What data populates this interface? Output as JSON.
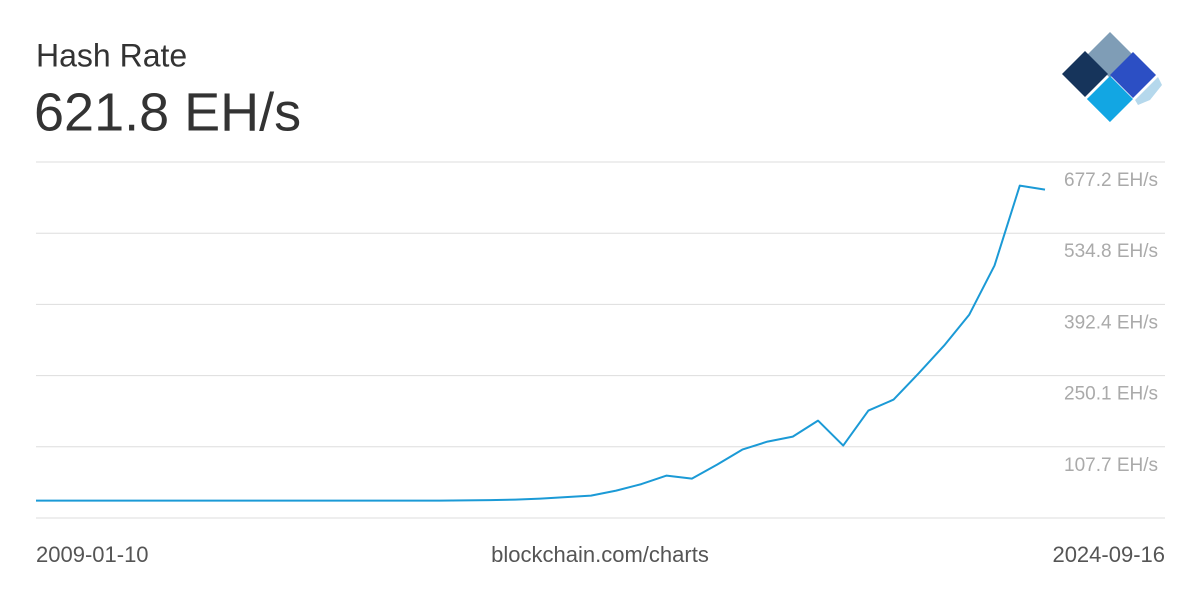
{
  "header": {
    "title": "Hash Rate",
    "value": "621.8 EH/s"
  },
  "chart_data": {
    "type": "line",
    "categories": [
      "2009-01-10",
      null,
      null,
      null,
      null,
      null,
      null,
      null,
      null,
      null,
      null,
      null,
      null,
      null,
      null,
      null,
      null,
      null,
      null,
      null,
      null,
      null,
      null,
      null,
      null,
      null,
      null,
      null,
      null,
      null,
      null,
      null,
      null,
      null,
      null,
      null,
      null,
      null,
      null,
      null,
      "2024-09-16"
    ],
    "series": [
      {
        "name": "Hash Rate",
        "color": "#1b9ad6",
        "values": [
          0,
          0,
          0,
          0,
          0,
          0,
          0,
          0,
          0,
          0,
          0,
          0,
          0,
          0,
          0,
          0,
          0,
          0.5,
          1,
          2,
          4,
          7,
          10,
          20,
          33,
          50,
          44,
          72,
          102,
          118,
          128,
          160,
          110,
          180,
          202,
          255,
          310,
          372,
          470,
          630,
          622
        ]
      }
    ],
    "ylim": [
      -34.7,
      677.2
    ],
    "yticks": [
      {
        "value": 107.7,
        "label": "107.7 EH/s"
      },
      {
        "value": 250.1,
        "label": "250.1 EH/s"
      },
      {
        "value": 392.4,
        "label": "392.4 EH/s"
      },
      {
        "value": 534.8,
        "label": "534.8 EH/s"
      },
      {
        "value": 677.2,
        "label": "677.2 EH/s"
      }
    ],
    "grid": true
  },
  "footer": {
    "source": "blockchain.com/charts"
  }
}
